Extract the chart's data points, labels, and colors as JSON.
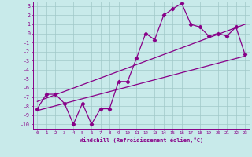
{
  "xlabel": "Windchill (Refroidissement éolien,°C)",
  "xlim": [
    -0.5,
    23.5
  ],
  "ylim": [
    -10.5,
    3.5
  ],
  "xticks": [
    0,
    1,
    2,
    3,
    4,
    5,
    6,
    7,
    8,
    9,
    10,
    11,
    12,
    13,
    14,
    15,
    16,
    17,
    18,
    19,
    20,
    21,
    22,
    23
  ],
  "yticks": [
    3,
    2,
    1,
    0,
    -1,
    -2,
    -3,
    -4,
    -5,
    -6,
    -7,
    -8,
    -9,
    -10
  ],
  "bg_color": "#c8eaea",
  "grid_color": "#a0c8c8",
  "line_color": "#880088",
  "line_width": 0.9,
  "marker": "D",
  "marker_size": 2.2,
  "data_x": [
    0,
    1,
    2,
    3,
    4,
    5,
    6,
    7,
    8,
    9,
    10,
    11,
    12,
    13,
    14,
    15,
    16,
    17,
    18,
    19,
    20,
    21,
    22,
    23
  ],
  "data_y": [
    -8.3,
    -6.7,
    -6.7,
    -7.7,
    -10.0,
    -7.7,
    -10.0,
    -8.3,
    -8.3,
    -5.3,
    -5.3,
    -2.7,
    0.0,
    -0.7,
    2.0,
    2.7,
    3.3,
    1.0,
    0.7,
    -0.3,
    0.0,
    -0.3,
    0.7,
    -2.3
  ],
  "trend1_x": [
    0,
    23
  ],
  "trend1_y": [
    -7.5,
    1.0
  ],
  "trend2_x": [
    0,
    23
  ],
  "trend2_y": [
    -8.5,
    -2.5
  ]
}
